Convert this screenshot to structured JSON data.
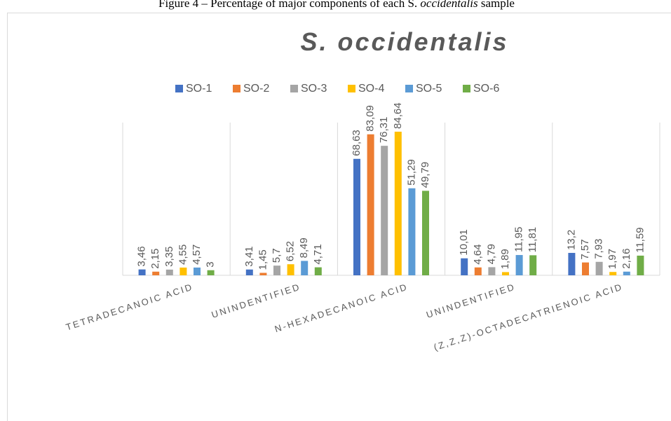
{
  "caption": {
    "before": "Figure 4 – Percentage of major components of each S. ",
    "italic": "occidentalis",
    "after": " sample"
  },
  "chart_data": {
    "type": "bar",
    "title": "S. occidentalis",
    "categories": [
      "TETRADECANOIC ACID",
      "UNINDENTIFIED",
      "N-HEXADECANOIC ACID",
      "UNINDENTIFIED",
      "(Z,Z,Z)-OCTADECATRIENOIC ACID"
    ],
    "series": [
      {
        "name": "SO-1",
        "color": "#4472c4",
        "values": [
          3.46,
          3.41,
          68.63,
          10.01,
          13.2
        ],
        "value_labels": [
          "3,46",
          "3,41",
          "68,63",
          "10,01",
          "13,2"
        ]
      },
      {
        "name": "SO-2",
        "color": "#ed7d31",
        "values": [
          2.15,
          1.45,
          83.09,
          4.64,
          7.57
        ],
        "value_labels": [
          "2,15",
          "1,45",
          "83,09",
          "4,64",
          "7,57"
        ]
      },
      {
        "name": "SO-3",
        "color": "#a5a5a5",
        "values": [
          3.35,
          5.7,
          76.31,
          4.79,
          7.93
        ],
        "value_labels": [
          "3,35",
          "5,7",
          "76,31",
          "4,79",
          "7,93"
        ]
      },
      {
        "name": "SO-4",
        "color": "#ffc000",
        "values": [
          4.55,
          6.52,
          84.64,
          1.89,
          1.97
        ],
        "value_labels": [
          "4,55",
          "6,52",
          "84,64",
          "1,89",
          "1,97"
        ]
      },
      {
        "name": "SO-5",
        "color": "#5b9bd5",
        "values": [
          4.57,
          8.49,
          51.29,
          11.95,
          2.16
        ],
        "value_labels": [
          "4,57",
          "8,49",
          "51,29",
          "11,95",
          "2,16"
        ]
      },
      {
        "name": "SO-6",
        "color": "#70ad47",
        "values": [
          3,
          4.71,
          49.79,
          11.81,
          11.59
        ],
        "value_labels": [
          "3",
          "4,71",
          "49,79",
          "11,81",
          "11,59"
        ]
      }
    ],
    "ylim": [
      0,
      90
    ],
    "legend": "top"
  }
}
